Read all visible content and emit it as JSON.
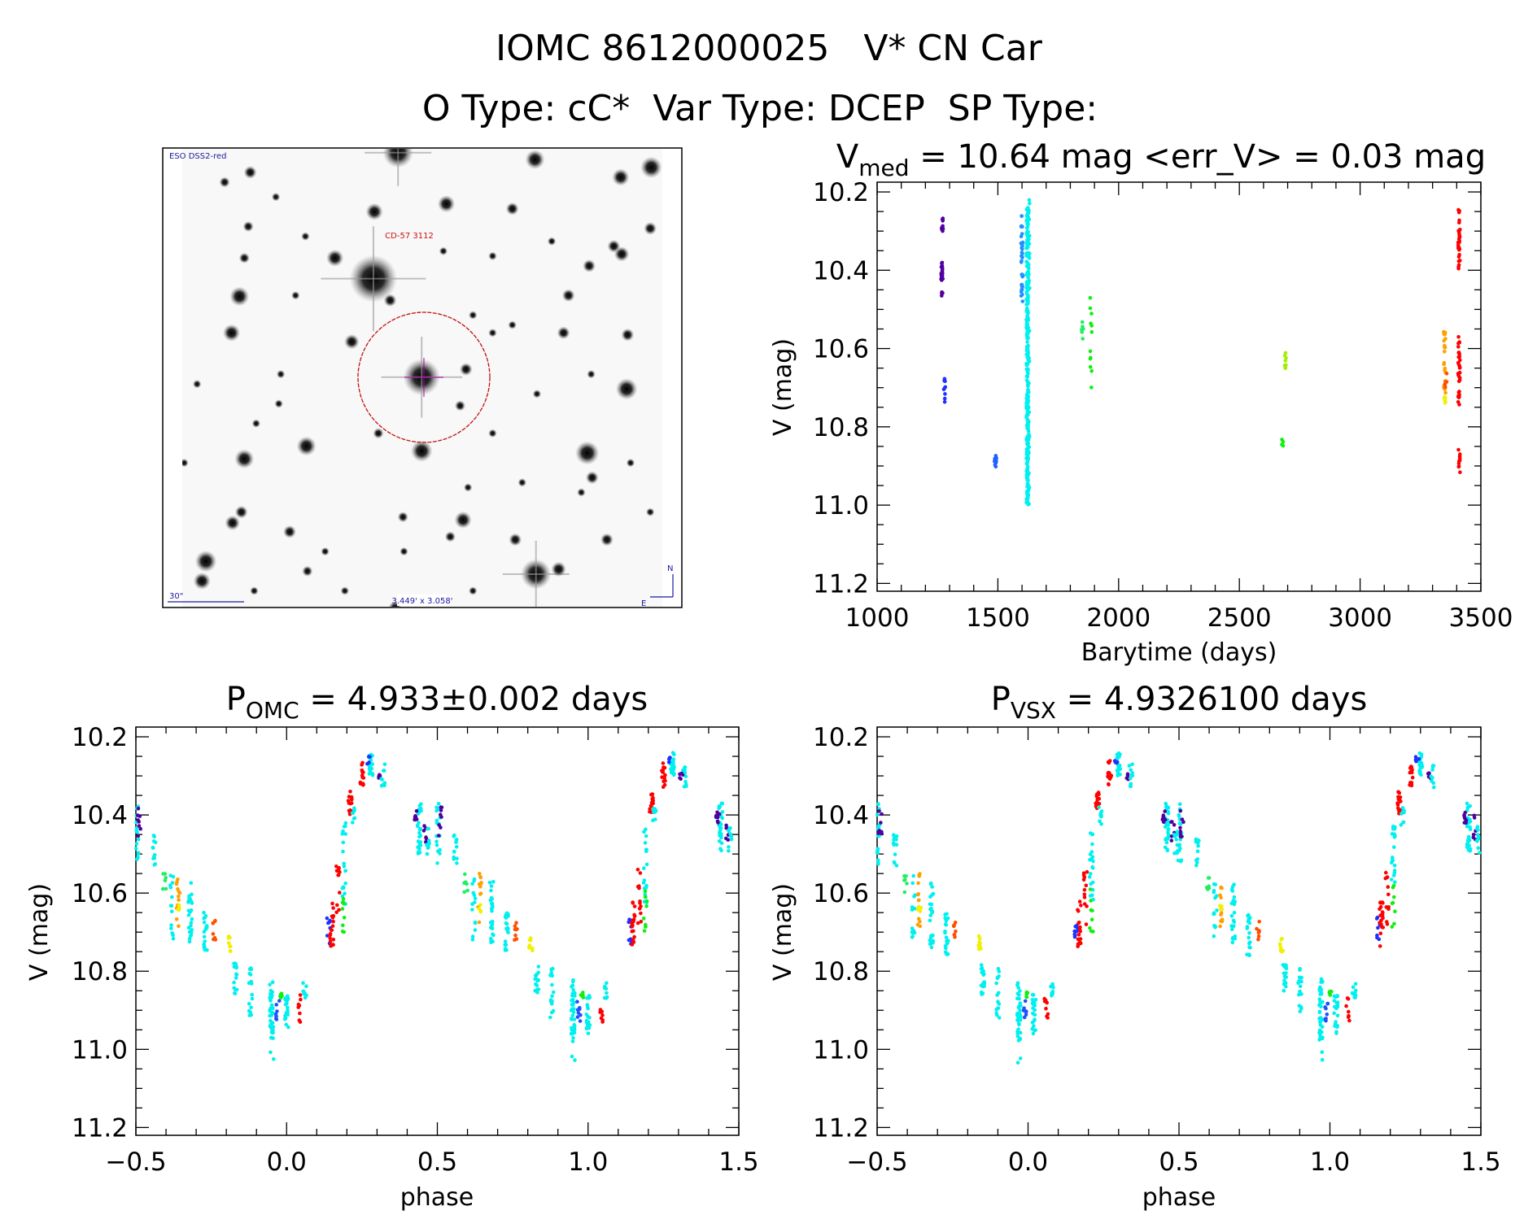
{
  "title": {
    "line1": "IOMC 8612000025   V* CN Car",
    "line2": "O Type: cC*  Var Type: DCEP  SP Type:"
  },
  "image": {
    "survey": "ESO DSS2-red",
    "object": "CD-57 3112",
    "scale": "30\"",
    "fov": "3.449' x 3.058'",
    "north": "N",
    "east": "E",
    "colors": {
      "labels": "#1a1aa0",
      "object": "#cc1010",
      "circle": "#c01010",
      "crosshair": "#b000b0"
    }
  },
  "chart_data": [
    {
      "type": "scatter",
      "title_main": "V",
      "title_sub": "med",
      "title_rest": " = 10.64 mag <err_V> = 0.03 mag",
      "xlabel": "Barytime (days)",
      "ylabel": "V (mag)",
      "xlim": [
        1000,
        3500
      ],
      "ylim": [
        11.22,
        10.175
      ],
      "y_inverted": true,
      "xticks": [
        1000,
        1500,
        2000,
        2500,
        3000,
        3500
      ],
      "xtick_labels": [
        "1000",
        "1500",
        "2000",
        "2500",
        "3000",
        "3500"
      ],
      "xminor": 100,
      "yticks": [
        10.2,
        10.4,
        10.6,
        10.8,
        11.0,
        11.2
      ],
      "ytick_labels": [
        "10.2",
        "10.4",
        "10.6",
        "10.8",
        "11.0",
        "11.2"
      ],
      "yminor": 0.05,
      "groups": [
        {
          "x": 1270,
          "mag": [
            10.26,
            10.3
          ],
          "color": "#5000a0",
          "n": 10
        },
        {
          "x": 1268,
          "mag": [
            10.38,
            10.47
          ],
          "color": "#5000a0",
          "n": 22
        },
        {
          "x": 1280,
          "mag": [
            10.66,
            10.74
          ],
          "color": "#2030ff",
          "n": 9
        },
        {
          "x": 1490,
          "mag": [
            10.85,
            10.91
          ],
          "color": "#2060ff",
          "n": 10
        },
        {
          "x": 1600,
          "mag": [
            10.26,
            10.48
          ],
          "color": "#2090ff",
          "n": 35
        },
        {
          "x": 1622,
          "mag": [
            10.24,
            11.0
          ],
          "color": "#00f0f0",
          "n": 260
        },
        {
          "x": 1628,
          "mag": [
            10.22,
            11.05
          ],
          "color": "#00f0f0",
          "n": 60
        },
        {
          "x": 1850,
          "mag": [
            10.53,
            10.58
          ],
          "color": "#20f060",
          "n": 6
        },
        {
          "x": 1885,
          "mag": [
            10.46,
            10.71
          ],
          "color": "#10f010",
          "n": 12
        },
        {
          "x": 2690,
          "mag": [
            10.61,
            10.66
          ],
          "color": "#a0f000",
          "n": 8
        },
        {
          "x": 2680,
          "mag": [
            10.83,
            10.85
          ],
          "color": "#10f010",
          "n": 5
        },
        {
          "x": 3350,
          "mag": [
            10.55,
            10.72
          ],
          "color": "#ffa000",
          "n": 22
        },
        {
          "x": 3350,
          "mag": [
            10.72,
            10.74
          ],
          "color": "#f0f000",
          "n": 6
        },
        {
          "x": 3355,
          "mag": [
            10.66,
            10.7
          ],
          "color": "#ff5000",
          "n": 6
        },
        {
          "x": 3410,
          "mag": [
            10.24,
            10.4
          ],
          "color": "#ff0000",
          "n": 30
        },
        {
          "x": 3410,
          "mag": [
            10.57,
            10.75
          ],
          "color": "#ff0000",
          "n": 35
        },
        {
          "x": 3410,
          "mag": [
            10.85,
            10.92
          ],
          "color": "#ff0000",
          "n": 10
        }
      ]
    },
    {
      "type": "scatter",
      "title_main": "P",
      "title_sub": "OMC",
      "title_rest": " = 4.933±0.002 days",
      "xlabel": "phase",
      "ylabel": "V (mag)",
      "xlim": [
        -0.5,
        1.5
      ],
      "ylim": [
        11.22,
        10.175
      ],
      "y_inverted": true,
      "xticks": [
        -0.5,
        0.0,
        0.5,
        1.0,
        1.5
      ],
      "xtick_labels": [
        "−0.5",
        "0.0",
        "0.5",
        "1.0",
        "1.5"
      ],
      "xminor": 0.1,
      "yticks": [
        10.2,
        10.4,
        10.6,
        10.8,
        11.0,
        11.2
      ],
      "ytick_labels": [
        "10.2",
        "10.4",
        "10.6",
        "10.8",
        "11.0",
        "11.2"
      ],
      "yminor": 0.05,
      "phase_repeats": true,
      "groups": [
        {
          "x": -0.497,
          "mag": [
            10.37,
            10.53
          ],
          "color": "#00f0f0",
          "n": 18
        },
        {
          "x": -0.49,
          "mag": [
            10.38,
            10.46
          ],
          "color": "#5000a0",
          "n": 8
        },
        {
          "x": -0.44,
          "mag": [
            10.45,
            10.53
          ],
          "color": "#00f0f0",
          "n": 12
        },
        {
          "x": -0.405,
          "mag": [
            10.55,
            10.6
          ],
          "color": "#20f060",
          "n": 6
        },
        {
          "x": -0.38,
          "mag": [
            10.55,
            10.72
          ],
          "color": "#00f0f0",
          "n": 14
        },
        {
          "x": -0.36,
          "mag": [
            10.55,
            10.69
          ],
          "color": "#ffa000",
          "n": 12
        },
        {
          "x": -0.36,
          "mag": [
            10.63,
            10.65
          ],
          "color": "#f0f000",
          "n": 4
        },
        {
          "x": -0.32,
          "mag": [
            10.57,
            10.74
          ],
          "color": "#00f0f0",
          "n": 26
        },
        {
          "x": -0.27,
          "mag": [
            10.65,
            10.76
          ],
          "color": "#00f0f0",
          "n": 20
        },
        {
          "x": -0.24,
          "mag": [
            10.67,
            10.72
          ],
          "color": "#ff5000",
          "n": 8
        },
        {
          "x": -0.19,
          "mag": [
            10.71,
            10.75
          ],
          "color": "#f0f000",
          "n": 8
        },
        {
          "x": -0.17,
          "mag": [
            10.78,
            10.86
          ],
          "color": "#00f0f0",
          "n": 16
        },
        {
          "x": -0.12,
          "mag": [
            10.79,
            10.92
          ],
          "color": "#00f0f0",
          "n": 16
        },
        {
          "x": -0.05,
          "mag": [
            10.82,
            10.98
          ],
          "color": "#00f0f0",
          "n": 40
        },
        {
          "x": -0.048,
          "mag": [
            11.0,
            11.04
          ],
          "color": "#00f0f0",
          "n": 2
        },
        {
          "x": -0.03,
          "mag": [
            10.87,
            10.93
          ],
          "color": "#2050ff",
          "n": 8
        },
        {
          "x": -0.02,
          "mag": [
            10.85,
            10.87
          ],
          "color": "#10f010",
          "n": 6
        },
        {
          "x": 0.0,
          "mag": [
            10.86,
            10.96
          ],
          "color": "#00f0f0",
          "n": 22
        },
        {
          "x": 0.045,
          "mag": [
            10.86,
            10.93
          ],
          "color": "#ff0000",
          "n": 8
        },
        {
          "x": 0.06,
          "mag": [
            10.83,
            10.87
          ],
          "color": "#00f0f0",
          "n": 10
        },
        {
          "x": 0.14,
          "mag": [
            10.66,
            10.73
          ],
          "color": "#2030ff",
          "n": 8
        },
        {
          "x": 0.15,
          "mag": [
            10.62,
            10.74
          ],
          "color": "#ff0000",
          "n": 18
        },
        {
          "x": 0.17,
          "mag": [
            10.53,
            10.68
          ],
          "color": "#ff0000",
          "n": 12
        },
        {
          "x": 0.19,
          "mag": [
            10.42,
            10.63
          ],
          "color": "#00f0f0",
          "n": 20
        },
        {
          "x": 0.19,
          "mag": [
            10.58,
            10.7
          ],
          "color": "#10f010",
          "n": 8
        },
        {
          "x": 0.21,
          "mag": [
            10.34,
            10.4
          ],
          "color": "#ff0000",
          "n": 16
        },
        {
          "x": 0.22,
          "mag": [
            10.38,
            10.43
          ],
          "color": "#00f0f0",
          "n": 8
        },
        {
          "x": 0.25,
          "mag": [
            10.26,
            10.33
          ],
          "color": "#ff0000",
          "n": 14
        },
        {
          "x": 0.28,
          "mag": [
            10.24,
            10.3
          ],
          "color": "#00f0f0",
          "n": 22
        },
        {
          "x": 0.27,
          "mag": [
            10.25,
            10.27
          ],
          "color": "#2030ff",
          "n": 4
        },
        {
          "x": 0.31,
          "mag": [
            10.29,
            10.31
          ],
          "color": "#5000a0",
          "n": 6
        },
        {
          "x": 0.32,
          "mag": [
            10.27,
            10.33
          ],
          "color": "#00f0f0",
          "n": 10
        },
        {
          "x": 0.44,
          "mag": [
            10.37,
            10.5
          ],
          "color": "#00f0f0",
          "n": 30
        },
        {
          "x": 0.43,
          "mag": [
            10.39,
            10.42
          ],
          "color": "#5000a0",
          "n": 8
        },
        {
          "x": 0.46,
          "mag": [
            10.4,
            10.47
          ],
          "color": "#5000a0",
          "n": 6
        },
        {
          "x": 0.47,
          "mag": [
            10.43,
            10.5
          ],
          "color": "#00f0f0",
          "n": 10
        }
      ]
    },
    {
      "type": "scatter",
      "title_main": "P",
      "title_sub": "VSX",
      "title_rest": " = 4.9326100 days",
      "xlabel": "phase",
      "ylabel": "V (mag)",
      "xlim": [
        -0.5,
        1.5
      ],
      "ylim": [
        11.22,
        10.175
      ],
      "y_inverted": true,
      "xticks": [
        -0.5,
        0.0,
        0.5,
        1.0,
        1.5
      ],
      "xtick_labels": [
        "−0.5",
        "0.0",
        "0.5",
        "1.0",
        "1.5"
      ],
      "xminor": 0.1,
      "yticks": [
        10.2,
        10.4,
        10.6,
        10.8,
        11.0,
        11.2
      ],
      "ytick_labels": [
        "10.2",
        "10.4",
        "10.6",
        "10.8",
        "11.0",
        "11.2"
      ],
      "yminor": 0.05,
      "phase_repeats": true,
      "groups": [
        {
          "x": -0.497,
          "mag": [
            10.37,
            10.53
          ],
          "color": "#00f0f0",
          "n": 18
        },
        {
          "x": -0.49,
          "mag": [
            10.38,
            10.46
          ],
          "color": "#5000a0",
          "n": 8
        },
        {
          "x": -0.44,
          "mag": [
            10.45,
            10.53
          ],
          "color": "#00f0f0",
          "n": 12
        },
        {
          "x": -0.405,
          "mag": [
            10.55,
            10.6
          ],
          "color": "#20f060",
          "n": 6
        },
        {
          "x": -0.38,
          "mag": [
            10.55,
            10.72
          ],
          "color": "#00f0f0",
          "n": 14
        },
        {
          "x": -0.36,
          "mag": [
            10.55,
            10.69
          ],
          "color": "#ffa000",
          "n": 12
        },
        {
          "x": -0.36,
          "mag": [
            10.63,
            10.65
          ],
          "color": "#f0f000",
          "n": 4
        },
        {
          "x": -0.32,
          "mag": [
            10.57,
            10.74
          ],
          "color": "#00f0f0",
          "n": 26
        },
        {
          "x": -0.27,
          "mag": [
            10.65,
            10.76
          ],
          "color": "#00f0f0",
          "n": 20
        },
        {
          "x": -0.24,
          "mag": [
            10.67,
            10.72
          ],
          "color": "#ff5000",
          "n": 8
        },
        {
          "x": -0.16,
          "mag": [
            10.71,
            10.75
          ],
          "color": "#f0f000",
          "n": 8
        },
        {
          "x": -0.15,
          "mag": [
            10.78,
            10.86
          ],
          "color": "#00f0f0",
          "n": 16
        },
        {
          "x": -0.1,
          "mag": [
            10.79,
            10.92
          ],
          "color": "#00f0f0",
          "n": 16
        },
        {
          "x": -0.03,
          "mag": [
            10.82,
            10.98
          ],
          "color": "#00f0f0",
          "n": 40
        },
        {
          "x": -0.028,
          "mag": [
            11.0,
            11.04
          ],
          "color": "#00f0f0",
          "n": 2
        },
        {
          "x": -0.01,
          "mag": [
            10.87,
            10.93
          ],
          "color": "#2050ff",
          "n": 8
        },
        {
          "x": 0.0,
          "mag": [
            10.85,
            10.87
          ],
          "color": "#10f010",
          "n": 6
        },
        {
          "x": 0.02,
          "mag": [
            10.86,
            10.96
          ],
          "color": "#00f0f0",
          "n": 22
        },
        {
          "x": 0.06,
          "mag": [
            10.86,
            10.93
          ],
          "color": "#ff0000",
          "n": 8
        },
        {
          "x": 0.08,
          "mag": [
            10.83,
            10.87
          ],
          "color": "#00f0f0",
          "n": 10
        },
        {
          "x": 0.16,
          "mag": [
            10.66,
            10.73
          ],
          "color": "#2030ff",
          "n": 8
        },
        {
          "x": 0.17,
          "mag": [
            10.62,
            10.74
          ],
          "color": "#ff0000",
          "n": 18
        },
        {
          "x": 0.19,
          "mag": [
            10.53,
            10.68
          ],
          "color": "#ff0000",
          "n": 12
        },
        {
          "x": 0.21,
          "mag": [
            10.42,
            10.63
          ],
          "color": "#00f0f0",
          "n": 20
        },
        {
          "x": 0.21,
          "mag": [
            10.58,
            10.7
          ],
          "color": "#10f010",
          "n": 8
        },
        {
          "x": 0.23,
          "mag": [
            10.34,
            10.4
          ],
          "color": "#ff0000",
          "n": 16
        },
        {
          "x": 0.24,
          "mag": [
            10.38,
            10.43
          ],
          "color": "#00f0f0",
          "n": 8
        },
        {
          "x": 0.27,
          "mag": [
            10.26,
            10.33
          ],
          "color": "#ff0000",
          "n": 14
        },
        {
          "x": 0.3,
          "mag": [
            10.24,
            10.3
          ],
          "color": "#00f0f0",
          "n": 22
        },
        {
          "x": 0.29,
          "mag": [
            10.25,
            10.27
          ],
          "color": "#2030ff",
          "n": 4
        },
        {
          "x": 0.33,
          "mag": [
            10.29,
            10.31
          ],
          "color": "#5000a0",
          "n": 6
        },
        {
          "x": 0.34,
          "mag": [
            10.27,
            10.33
          ],
          "color": "#00f0f0",
          "n": 10
        },
        {
          "x": 0.46,
          "mag": [
            10.37,
            10.5
          ],
          "color": "#00f0f0",
          "n": 30
        },
        {
          "x": 0.45,
          "mag": [
            10.39,
            10.42
          ],
          "color": "#5000a0",
          "n": 8
        },
        {
          "x": 0.48,
          "mag": [
            10.4,
            10.47
          ],
          "color": "#5000a0",
          "n": 6
        },
        {
          "x": 0.49,
          "mag": [
            10.43,
            10.5
          ],
          "color": "#00f0f0",
          "n": 10
        }
      ]
    }
  ]
}
